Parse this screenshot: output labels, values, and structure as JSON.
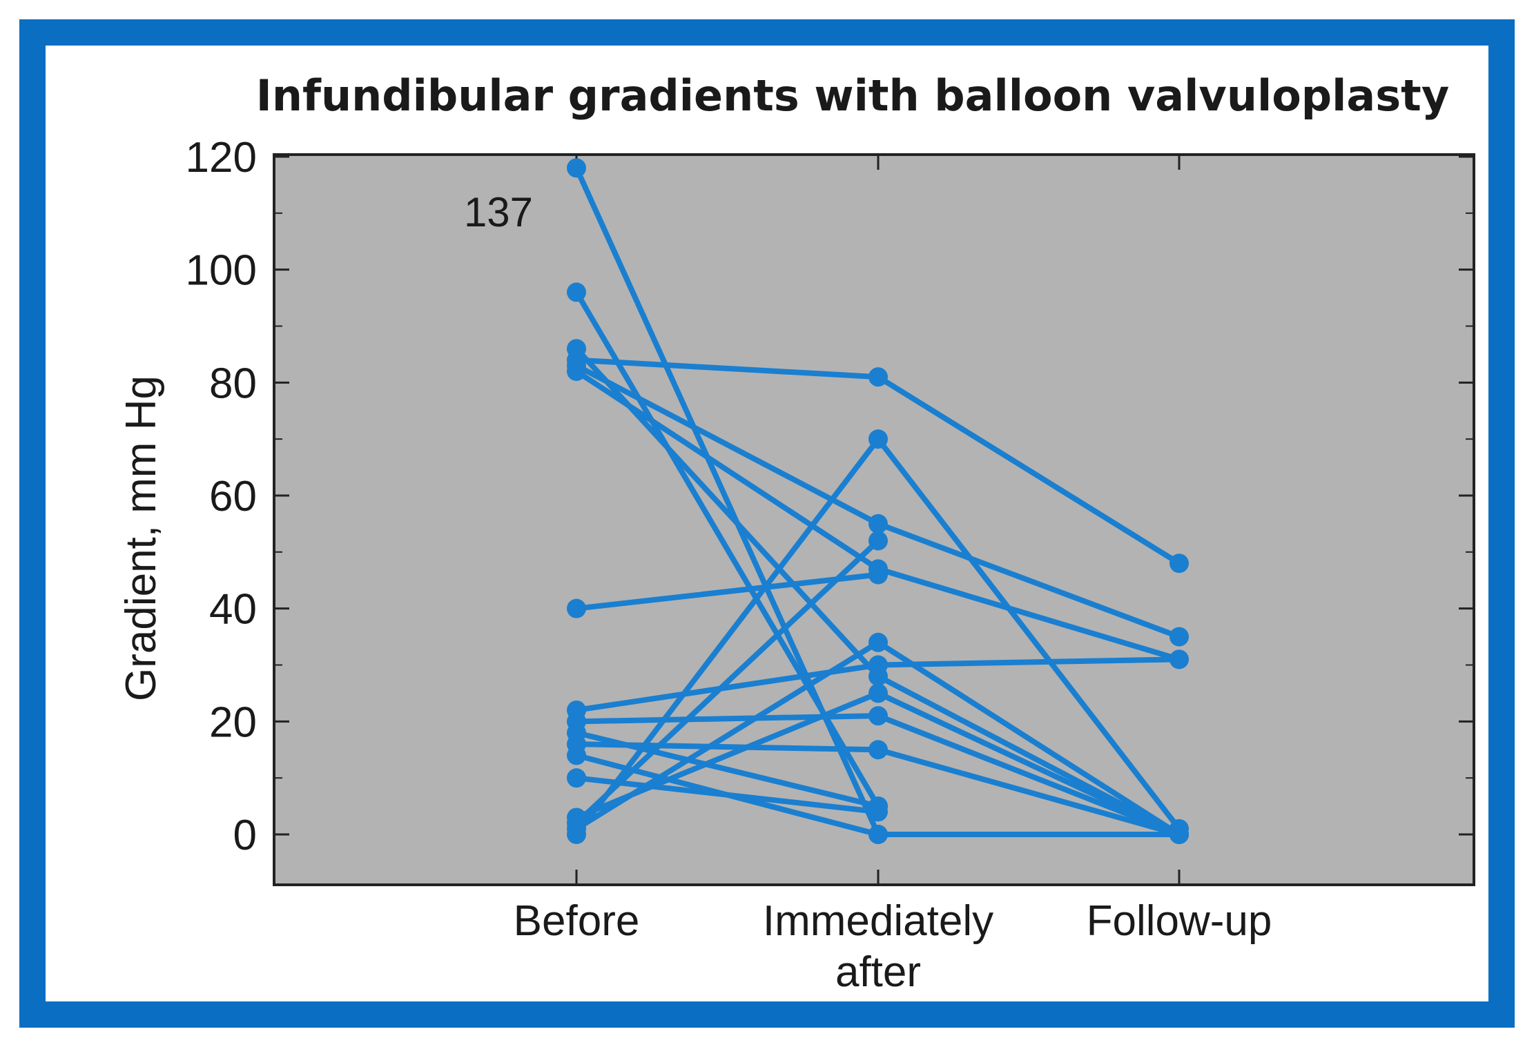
{
  "chart_data": {
    "type": "line",
    "title": "Infundibular gradients with balloon valvuloplasty",
    "ylabel": "Gradient, mm Hg",
    "xlabel": "",
    "categories": [
      "Before",
      "Immediately after",
      "Follow-up"
    ],
    "category_lines": [
      [
        "Before"
      ],
      [
        "Immediately",
        "after"
      ],
      [
        "Follow-up"
      ]
    ],
    "ylim": [
      -9,
      120
    ],
    "yticks": [
      0,
      20,
      40,
      60,
      80,
      100,
      120
    ],
    "annotations": [
      {
        "text": "137"
      }
    ],
    "grid": false,
    "background_color": "#b3b3b3",
    "line_color": "#1a7fd0",
    "frame_color": "#0a6fc2",
    "series": [
      {
        "values": [
          118,
          0,
          null
        ]
      },
      {
        "values": [
          96,
          5,
          null
        ]
      },
      {
        "values": [
          86,
          28,
          0
        ]
      },
      {
        "values": [
          84,
          81,
          48
        ]
      },
      {
        "values": [
          83,
          55,
          35
        ]
      },
      {
        "values": [
          82,
          47,
          31
        ]
      },
      {
        "values": [
          40,
          46,
          null
        ]
      },
      {
        "values": [
          22,
          30,
          31
        ]
      },
      {
        "values": [
          20,
          21,
          0
        ]
      },
      {
        "values": [
          18,
          5,
          null
        ]
      },
      {
        "values": [
          16,
          15,
          0
        ]
      },
      {
        "values": [
          14,
          0,
          0
        ]
      },
      {
        "values": [
          10,
          4,
          null
        ]
      },
      {
        "values": [
          0,
          70,
          1
        ]
      },
      {
        "values": [
          2,
          52,
          null
        ]
      },
      {
        "values": [
          1,
          34,
          0
        ]
      },
      {
        "values": [
          3,
          25,
          0
        ]
      }
    ]
  }
}
